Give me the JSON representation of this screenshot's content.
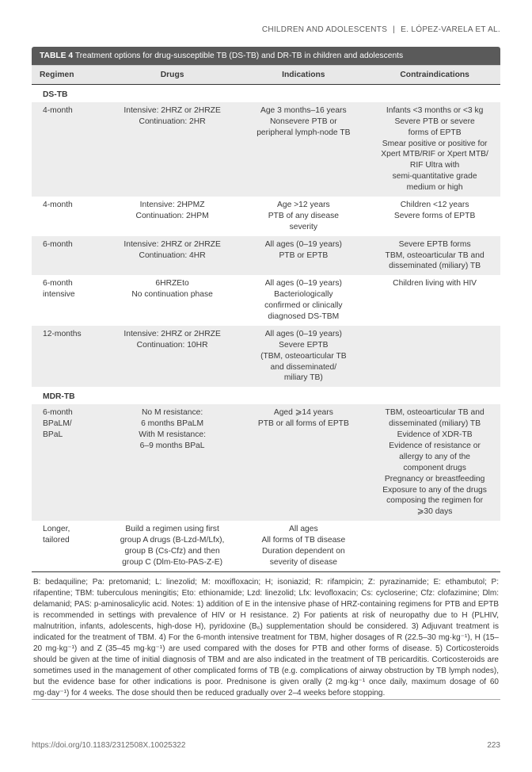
{
  "header": {
    "left": "CHILDREN AND ADOLESCENTS",
    "sep": "|",
    "right": "E. LÓPEZ-VARELA ET AL."
  },
  "tableTitle": {
    "label": "TABLE 4",
    "text": "Treatment options for drug-susceptible TB (DS-TB) and DR-TB in children and adolescents"
  },
  "cols": {
    "c1": "Regimen",
    "c2": "Drugs",
    "c3": "Indications",
    "c4": "Contraindications"
  },
  "sections": {
    "s1": "DS-TB",
    "s2": "MDR-TB"
  },
  "rows": {
    "r1": {
      "regimen": "4-month",
      "drugs": "Intensive: 2HRZ or 2HRZE\nContinuation: 2HR",
      "indications": "Age 3 months–16 years\nNonsevere PTB or\nperipheral lymph-node TB",
      "contra": "Infants <3 months or <3 kg\nSevere PTB or severe\nforms of EPTB\nSmear positive or positive for\nXpert MTB/RIF or Xpert MTB/\nRIF Ultra with\nsemi-quantitative grade\nmedium or high"
    },
    "r2": {
      "regimen": "4-month",
      "drugs": "Intensive: 2HPMZ\nContinuation: 2HPM",
      "indications": "Age >12 years\nPTB of any disease\nseverity",
      "contra": "Children <12 years\nSevere forms of EPTB"
    },
    "r3": {
      "regimen": "6-month",
      "drugs": "Intensive: 2HRZ or 2HRZE\nContinuation: 4HR",
      "indications": "All ages (0–19 years)\nPTB or EPTB",
      "contra": "Severe EPTB forms\nTBM, osteoarticular TB and\ndisseminated (miliary) TB"
    },
    "r4": {
      "regimen": "6-month\nintensive",
      "drugs": "6HRZEto\nNo continuation phase",
      "indications": "All ages (0–19 years)\nBacteriologically\nconfirmed or clinically\ndiagnosed DS-TBM",
      "contra": "Children living with HIV"
    },
    "r5": {
      "regimen": "12-months",
      "drugs": "Intensive: 2HRZ or 2HRZE\nContinuation: 10HR",
      "indications": "All ages (0–19 years)\nSevere EPTB\n(TBM, osteoarticular TB\nand disseminated/\nmiliary TB)",
      "contra": ""
    },
    "r6": {
      "regimen": "6-month\nBPaLM/\nBPaL",
      "drugs": "No M resistance:\n6 months BPaLM\nWith M resistance:\n6–9 months BPaL",
      "indications": "Aged ⩾14 years\nPTB or all forms of EPTB",
      "contra": "TBM, osteoarticular TB and\ndisseminated (miliary) TB\nEvidence of XDR-TB\nEvidence of resistance or\nallergy to any of the\ncomponent drugs\nPregnancy or breastfeeding\nExposure to any of the drugs\ncomposing the regimen for\n⩾30 days"
    },
    "r7": {
      "regimen": "Longer,\ntailored",
      "drugs": "Build a regimen using first\ngroup A drugs (B-Lzd-M/Lfx),\ngroup B (Cs-Cfz) and then\ngroup C (Dlm-Eto-PAS-Z-E)",
      "indications": "All ages\nAll forms of TB disease\nDuration dependent on\nseverity of disease",
      "contra": ""
    }
  },
  "footnote": "B: bedaquiline; Pa: pretomanid; L: linezolid; M: moxifloxacin; H; isoniazid; R: rifampicin; Z: pyrazinamide; E: ethambutol; P: rifapentine; TBM: tuberculous meningitis; Eto: ethionamide; Lzd: linezolid; Lfx: levofloxacin; Cs: cycloserine; Cfz: clofazimine; Dlm: delamanid; PAS: p-aminosalicylic acid. Notes: 1) addition of E in the intensive phase of HRZ-containing regimens for PTB and EPTB is recommended in settings with prevalence of HIV or H resistance. 2) For patients at risk of neuropathy due to H (PLHIV, malnutrition, infants, adolescents, high-dose H), pyridoxine (B₆) supplementation should be considered. 3) Adjuvant treatment is indicated for the treatment of TBM. 4) For the 6-month intensive treatment for TBM, higher dosages of R (22.5–30 mg·kg⁻¹), H (15–20 mg·kg⁻¹) and Z (35–45 mg·kg⁻¹) are used compared with the doses for PTB and other forms of disease. 5) Corticosteroids should be given at the time of initial diagnosis of TBM and are also indicated in the treatment of TB pericarditis. Corticosteroids are sometimes used in the management of other complicated forms of TB (e.g. complications of airway obstruction by TB lymph nodes), but the evidence base for other indications is poor. Prednisone is given orally (2 mg·kg⁻¹ once daily, maximum dosage of 60 mg·day⁻¹) for 4 weeks. The dose should then be reduced gradually over 2–4 weeks before stopping.",
  "footer": {
    "doi": "https://doi.org/10.1183/2312508X.10025322",
    "page": "223"
  }
}
